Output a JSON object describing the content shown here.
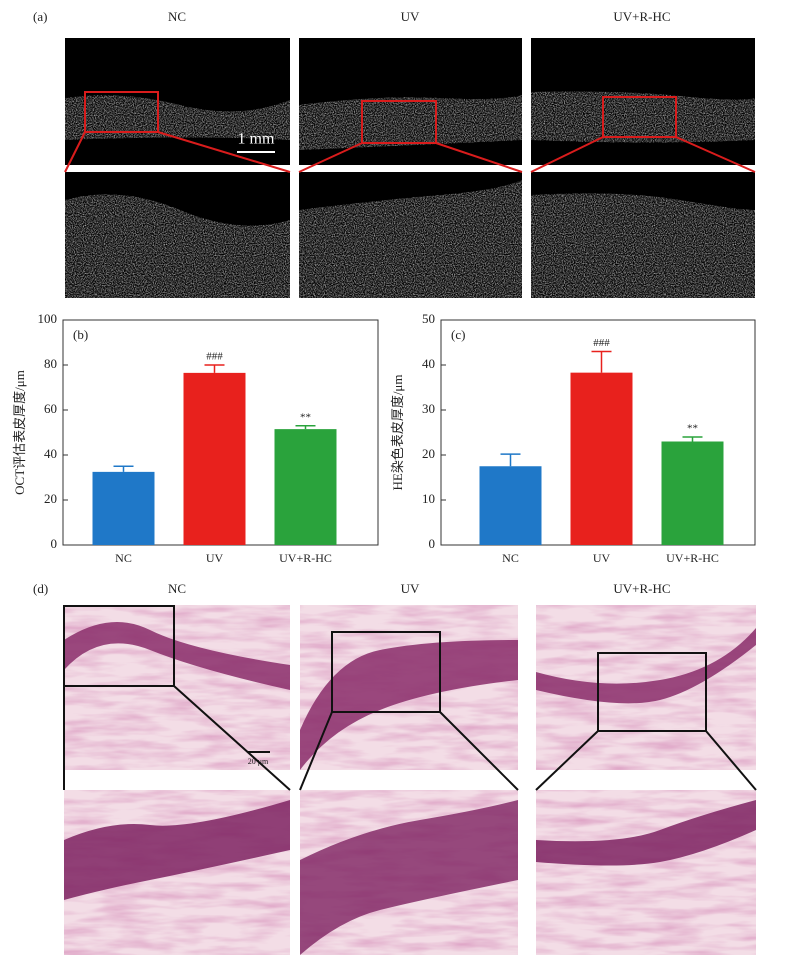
{
  "panels": {
    "a": {
      "label": "(a)",
      "titles": [
        "NC",
        "UV",
        "UV+R-HC"
      ],
      "scale_bar": "1 mm"
    },
    "d": {
      "label": "(d)",
      "titles": [
        "NC",
        "UV",
        "UV+R-HC"
      ],
      "scale_bar": "20 μm"
    }
  },
  "chart_data": [
    {
      "type": "bar",
      "label": "(b)",
      "ylabel": "OCT评估表皮厚度/μm",
      "categories": [
        "NC",
        "UV",
        "UV+R-HC"
      ],
      "values": [
        32.5,
        76.5,
        51.5
      ],
      "errors": [
        2.5,
        3.5,
        1.5
      ],
      "significance": [
        null,
        "###",
        "**"
      ],
      "colors": [
        "#1f78c8",
        "#e8211d",
        "#2aa33c"
      ],
      "ylim": [
        0,
        100
      ],
      "yticks": [
        0,
        20,
        40,
        60,
        80,
        100
      ]
    },
    {
      "type": "bar",
      "label": "(c)",
      "ylabel": "HE染色表皮厚度/μm",
      "categories": [
        "NC",
        "UV",
        "UV+R-HC"
      ],
      "values": [
        17.5,
        38.3,
        23
      ],
      "errors": [
        2.7,
        4.7,
        1
      ],
      "significance": [
        null,
        "###",
        "**"
      ],
      "colors": [
        "#1f78c8",
        "#e8211d",
        "#2aa33c"
      ],
      "ylim": [
        0,
        50
      ],
      "yticks": [
        0,
        10,
        20,
        30,
        40,
        50
      ]
    }
  ]
}
